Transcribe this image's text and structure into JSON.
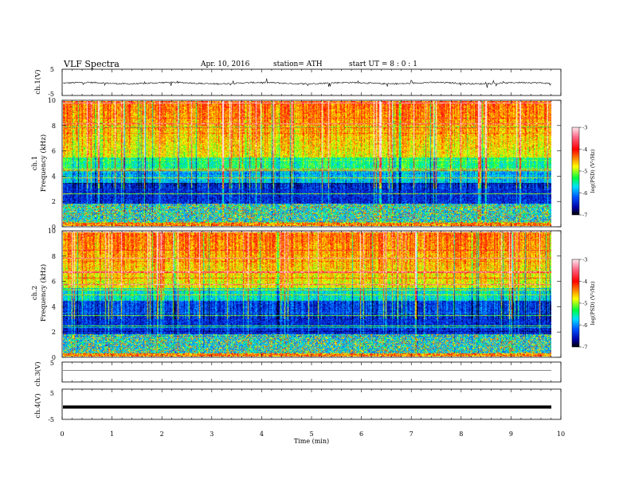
{
  "header": {
    "title": "VLF  Spectra",
    "date": "Apr. 10,  2016",
    "station": "station= ATH",
    "start": "start  UT  =   8  : 0  : 1"
  },
  "chart_data": {
    "type": "heatmap",
    "xlabel": "Time  (min)",
    "xlim": [
      0,
      10
    ],
    "xticks": [
      "0",
      "1",
      "2",
      "3",
      "4",
      "5",
      "6",
      "7",
      "8",
      "9",
      "10"
    ],
    "panels": [
      {
        "id": "ch1-waveform",
        "type": "line",
        "ylabel": "ch.1(V)",
        "yticks": [
          "5",
          "-5"
        ],
        "ylim": [
          -5,
          5
        ],
        "data_span_min": [
          0,
          9.8
        ]
      },
      {
        "id": "ch1-spectrogram",
        "type": "heatmap",
        "ylabel_top": "ch.1",
        "ylabel": "Frequency  (kHz)",
        "yticks": [
          "0",
          "2",
          "4",
          "6",
          "8",
          "10"
        ],
        "ylim_khz": [
          0,
          10
        ],
        "colorbar": {
          "label": "log(PSD) (V²/Hz)",
          "ticks": [
            "-3",
            "-4",
            "-5",
            "-6",
            "-7"
          ],
          "range": [
            -7,
            -3
          ],
          "colors": [
            "#000000",
            "#0000a0",
            "#0050ff",
            "#00e0ff",
            "#00ff40",
            "#ffff00",
            "#ff8000",
            "#ff0000",
            "#ff6080",
            "#ffe0e8"
          ]
        },
        "description_bands_khz": [
          {
            "from": 0,
            "to": 1.8,
            "level": "mixed-lines"
          },
          {
            "from": 1.8,
            "to": 3.5,
            "level": -6.6
          },
          {
            "from": 3.5,
            "to": 5.5,
            "level": -6.0
          },
          {
            "from": 5.5,
            "to": 10,
            "level": -4.8
          }
        ]
      },
      {
        "id": "ch2-spectrogram",
        "type": "heatmap",
        "ylabel_top": "ch.2",
        "ylabel": "Frequency  (kHz)",
        "yticks": [
          "0",
          "2",
          "4",
          "6",
          "8",
          "10"
        ],
        "ylim_khz": [
          0,
          10
        ],
        "colorbar": {
          "label": "log(PSD) (V²/Hz)",
          "ticks": [
            "-3",
            "-4",
            "-5",
            "-6",
            "-7"
          ],
          "range": [
            -7,
            -3
          ]
        }
      },
      {
        "id": "ch3-waveform",
        "type": "line",
        "ylabel": "ch.3(V)",
        "yticks": [
          "5"
        ],
        "ylim": [
          -5,
          5
        ],
        "constant_value": 0
      },
      {
        "id": "ch4-waveform",
        "type": "line",
        "ylabel": "ch.4(V)",
        "yticks": [
          "5",
          "-5"
        ],
        "ylim": [
          -5,
          5
        ],
        "constant_value": 0
      }
    ]
  }
}
